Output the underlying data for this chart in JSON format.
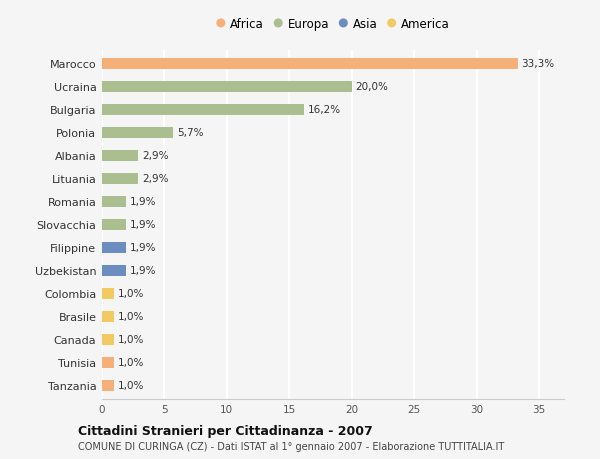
{
  "countries": [
    "Marocco",
    "Ucraina",
    "Bulgaria",
    "Polonia",
    "Albania",
    "Lituania",
    "Romania",
    "Slovacchia",
    "Filippine",
    "Uzbekistan",
    "Colombia",
    "Brasile",
    "Canada",
    "Tunisia",
    "Tanzania"
  ],
  "values": [
    33.3,
    20.0,
    16.2,
    5.7,
    2.9,
    2.9,
    1.9,
    1.9,
    1.9,
    1.9,
    1.0,
    1.0,
    1.0,
    1.0,
    1.0
  ],
  "labels": [
    "33,3%",
    "20,0%",
    "16,2%",
    "5,7%",
    "2,9%",
    "2,9%",
    "1,9%",
    "1,9%",
    "1,9%",
    "1,9%",
    "1,0%",
    "1,0%",
    "1,0%",
    "1,0%",
    "1,0%"
  ],
  "continents": [
    "Africa",
    "Europa",
    "Europa",
    "Europa",
    "Europa",
    "Europa",
    "Europa",
    "Europa",
    "Asia",
    "Asia",
    "America",
    "America",
    "America",
    "Africa",
    "Africa"
  ],
  "continent_colors": {
    "Africa": "#F5B07A",
    "Europa": "#ABBE90",
    "Asia": "#6B8DBF",
    "America": "#F2CA62"
  },
  "legend_order": [
    "Africa",
    "Europa",
    "Asia",
    "America"
  ],
  "title": "Cittadini Stranieri per Cittadinanza - 2007",
  "subtitle": "COMUNE DI CURINGA (CZ) - Dati ISTAT al 1° gennaio 2007 - Elaborazione TUTTITALIA.IT",
  "xlim": [
    0,
    37
  ],
  "xticks": [
    0,
    5,
    10,
    15,
    20,
    25,
    30,
    35
  ],
  "background_color": "#f5f5f5",
  "grid_color": "#ffffff",
  "bar_height": 0.45
}
